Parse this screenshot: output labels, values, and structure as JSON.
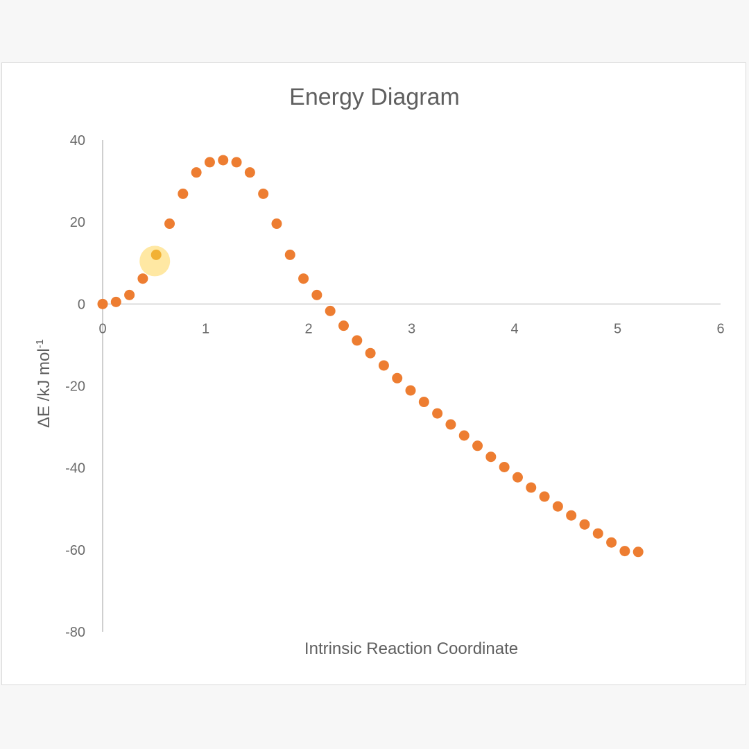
{
  "chart_data": {
    "type": "scatter",
    "title": "Energy Diagram",
    "xlabel": "Intrinsic Reaction Coordinate",
    "ylabel_main": "ΔE /kJ mol",
    "ylabel_sup": "-1",
    "xlim": [
      0,
      6
    ],
    "ylim": [
      -80,
      40
    ],
    "x_ticks": [
      0,
      1,
      2,
      3,
      4,
      5,
      6
    ],
    "y_ticks": [
      40,
      20,
      0,
      -20,
      -40,
      -60,
      -80
    ],
    "grid": false,
    "legend": "none",
    "marker_color": "#ed7d31",
    "highlight_color": "#ffd966",
    "highlight_point_index": 4,
    "series": [
      {
        "x": [
          0.0,
          0.13,
          0.26,
          0.39,
          0.52,
          0.65,
          0.78,
          0.91,
          1.04,
          1.17,
          1.3,
          1.43,
          1.56,
          1.69,
          1.82,
          1.95,
          2.08,
          2.21,
          2.34,
          2.47,
          2.6,
          2.73,
          2.86,
          2.99,
          3.12,
          3.25,
          3.38,
          3.51,
          3.64,
          3.77,
          3.9,
          4.03,
          4.16,
          4.29,
          4.42,
          4.55,
          4.68,
          4.81,
          4.94,
          5.07,
          5.2
        ],
        "y": [
          0.0,
          0.5,
          2.2,
          6.2,
          12.0,
          19.6,
          26.9,
          32.1,
          34.6,
          35.1,
          34.6,
          32.1,
          26.9,
          19.6,
          12.0,
          6.2,
          2.2,
          -1.7,
          -5.3,
          -8.9,
          -12.0,
          -15.0,
          -18.1,
          -21.1,
          -23.9,
          -26.7,
          -29.4,
          -32.1,
          -34.6,
          -37.3,
          -39.8,
          -42.3,
          -44.8,
          -47.0,
          -49.4,
          -51.6,
          -53.8,
          -56.0,
          -58.2,
          -60.3,
          -60.5
        ]
      }
    ]
  }
}
